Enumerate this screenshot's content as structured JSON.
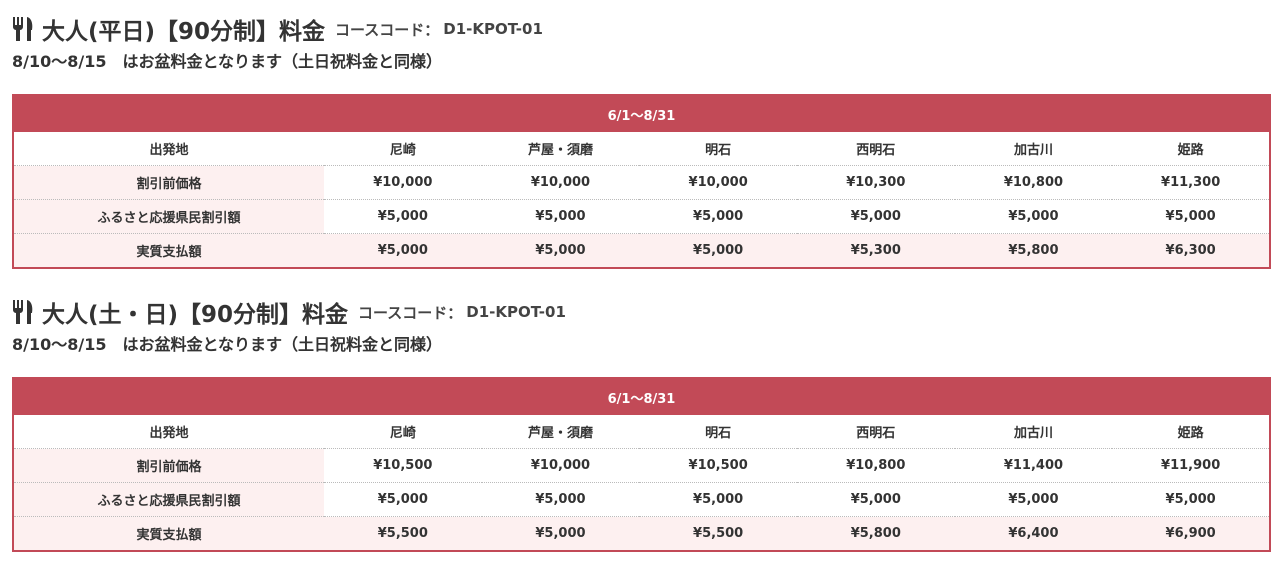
{
  "sections": [
    {
      "title": "大人(平日)【90分制】料金",
      "code_label": "コースコード：",
      "code": "D1-KPOT-01",
      "note": "8/10〜8/15　はお盆料金となります（土日祝料金と同様）",
      "table": {
        "period": "6/1〜8/31",
        "rows": [
          [
            "出発地",
            "尼崎",
            "芦屋・須磨",
            "明石",
            "西明石",
            "加古川",
            "姫路"
          ],
          [
            "割引前価格",
            "¥10,000",
            "¥10,000",
            "¥10,000",
            "¥10,300",
            "¥10,800",
            "¥11,300"
          ],
          [
            "ふるさと応援県民割引額",
            "¥5,000",
            "¥5,000",
            "¥5,000",
            "¥5,000",
            "¥5,000",
            "¥5,000"
          ],
          [
            "実質支払額",
            "¥5,000",
            "¥5,000",
            "¥5,000",
            "¥5,300",
            "¥5,800",
            "¥6,300"
          ]
        ]
      }
    },
    {
      "title": "大人(土・日)【90分制】料金",
      "code_label": "コースコード：",
      "code": "D1-KPOT-01",
      "note": "8/10〜8/15　はお盆料金となります（土日祝料金と同様）",
      "table": {
        "period": "6/1〜8/31",
        "rows": [
          [
            "出発地",
            "尼崎",
            "芦屋・須磨",
            "明石",
            "西明石",
            "加古川",
            "姫路"
          ],
          [
            "割引前価格",
            "¥10,500",
            "¥10,000",
            "¥10,500",
            "¥10,800",
            "¥11,400",
            "¥11,900"
          ],
          [
            "ふるさと応援県民割引額",
            "¥5,000",
            "¥5,000",
            "¥5,000",
            "¥5,000",
            "¥5,000",
            "¥5,000"
          ],
          [
            "実質支払額",
            "¥5,500",
            "¥5,000",
            "¥5,500",
            "¥5,800",
            "¥6,400",
            "¥6,900"
          ]
        ]
      }
    }
  ]
}
